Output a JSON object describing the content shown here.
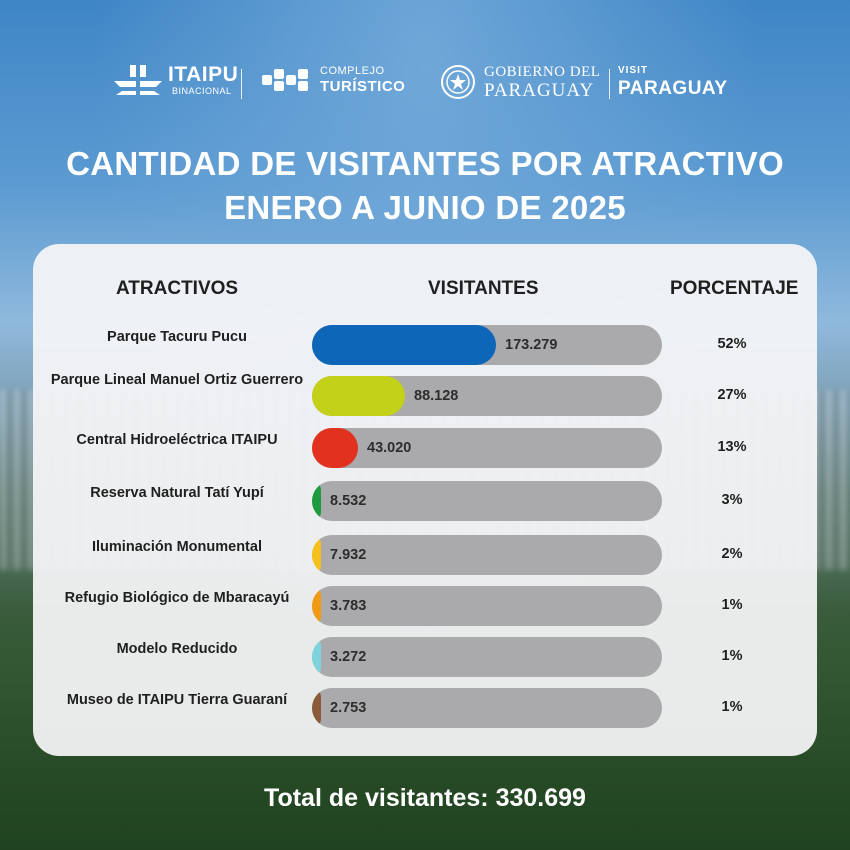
{
  "logos": {
    "itaipu_name": "ITAIPU",
    "itaipu_sub": "BINACIONAL",
    "complejo_top": "COMPLEJO",
    "complejo_bottom": "TURÍSTICO",
    "gobierno_top": "GOBIERNO DEL",
    "gobierno_bottom": "PARAGUAY",
    "visit_top": "VISIT",
    "visit_bottom": "PARAGUAY"
  },
  "chart_data": {
    "type": "bar",
    "title": "CANTIDAD DE VISITANTES POR ATRACTIVO",
    "subtitle": "ENERO A JUNIO DE 2025",
    "column_headers": {
      "category": "ATRACTIVOS",
      "value": "VISITANTES",
      "percent": "PORCENTAJE"
    },
    "categories": [
      "Parque Tacuru Pucu",
      "Parque Lineal Manuel Ortiz Guerrero",
      "Central Hidroeléctrica ITAIPU",
      "Reserva Natural Tatí Yupí",
      "Iluminación Monumental",
      "Refugio Biológico de Mbaracayú",
      "Modelo Reducido",
      "Museo de ITAIPU Tierra Guaraní"
    ],
    "values": [
      173279,
      88128,
      43020,
      8532,
      7932,
      3783,
      3272,
      2753
    ],
    "value_labels": [
      "173.279",
      "88.128",
      "43.020",
      "8.532",
      "7.932",
      "3.783",
      "3.272",
      "2.753"
    ],
    "percentages": [
      "52%",
      "27%",
      "13%",
      "3%",
      "2%",
      "1%",
      "1%",
      "1%"
    ],
    "colors": [
      "#0d66b8",
      "#c3d118",
      "#e3311f",
      "#1f9b3f",
      "#f6c01c",
      "#ef9a12",
      "#7fd3dc",
      "#8a5a3a"
    ],
    "track_color": "#aaaaac",
    "total_label": "Total de visitantes: 330.699"
  }
}
